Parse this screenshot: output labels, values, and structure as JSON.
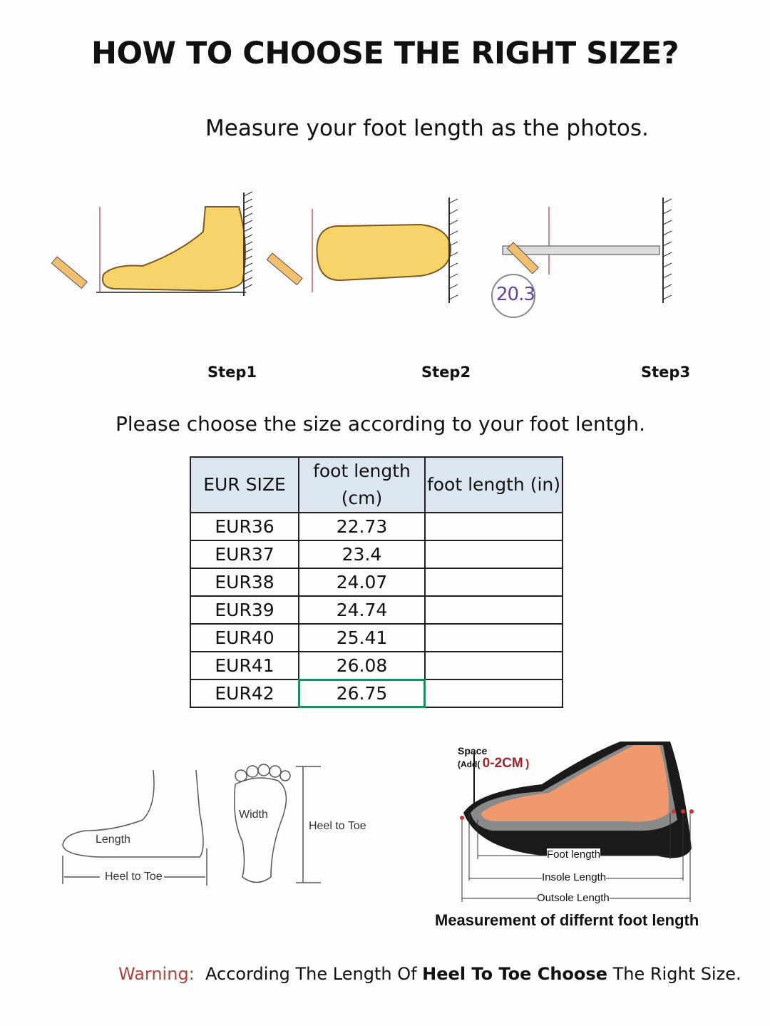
{
  "title": "HOW TO CHOOSE THE RIGHT SIZE?",
  "subtitle": "Measure your foot length as the photos.",
  "steps": [
    {
      "label": "Step1"
    },
    {
      "label": "Step2"
    },
    {
      "label": "Step3"
    }
  ],
  "ruler_reading": "20.3",
  "choose_text": "Please choose the size according to your foot lentgh.",
  "table": {
    "headers": [
      "EUR SIZE",
      "foot length (cm)",
      "foot length (in)"
    ],
    "rows": [
      [
        "EUR36",
        "22.73",
        ""
      ],
      [
        "EUR37",
        "23.4",
        ""
      ],
      [
        "EUR38",
        "24.07",
        ""
      ],
      [
        "EUR39",
        "24.74",
        ""
      ],
      [
        "EUR40",
        "25.41",
        ""
      ],
      [
        "EUR41",
        "26.08",
        ""
      ],
      [
        "EUR42",
        "26.75",
        ""
      ]
    ],
    "selected_cell": "EUR42 / foot length (cm)",
    "header_bg": "#dce6f1",
    "selection_color": "#1e8a5e"
  },
  "diagram_labels": {
    "length": "Length",
    "heel_to_toe_1": "Heel to Toe",
    "width": "Width",
    "heel_to_toe_2": "Heel to Toe",
    "space": "Space",
    "add": "(Add(",
    "space_value": "0-2CM",
    "space_close": ")",
    "foot_length": "Foot length",
    "insole_length": "Insole Length",
    "outsole_length": "Outsole Length"
  },
  "measurement_caption": "Measurement of differnt foot length",
  "warning": {
    "label": "Warning:",
    "text_before": "According The Length Of ",
    "bold": "Heel To Toe Choose",
    "text_after": " The Right Size.",
    "color": "#b0423e"
  }
}
